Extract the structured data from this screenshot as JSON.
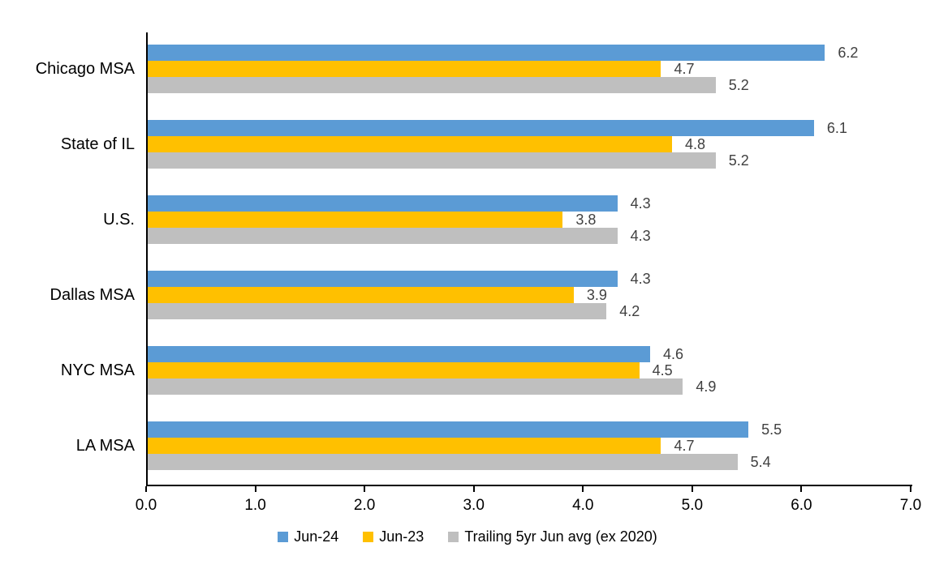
{
  "chart_data": {
    "type": "bar",
    "orientation": "horizontal",
    "title": "",
    "categories": [
      "Chicago MSA",
      "State of IL",
      "U.S.",
      "Dallas MSA",
      "NYC MSA",
      "LA MSA"
    ],
    "series": [
      {
        "name": "Jun-24",
        "color": "#5B9BD5",
        "values": [
          6.2,
          6.1,
          4.3,
          4.3,
          4.6,
          5.5
        ]
      },
      {
        "name": "Jun-23",
        "color": "#FFC000",
        "values": [
          4.7,
          4.8,
          3.8,
          3.9,
          4.5,
          4.7
        ]
      },
      {
        "name": "Trailing 5yr Jun avg (ex 2020)",
        "color": "#BFBFBF",
        "values": [
          5.2,
          5.2,
          4.3,
          4.2,
          4.9,
          5.4
        ]
      }
    ],
    "data_labels": true,
    "label_decimals": 1,
    "xlabel": "",
    "ylabel": "",
    "xlim": [
      0.0,
      7.0
    ],
    "x_ticks": [
      "0.0",
      "1.0",
      "2.0",
      "3.0",
      "4.0",
      "5.0",
      "6.0",
      "7.0"
    ],
    "grid": false,
    "legend_position": "bottom",
    "colors": {
      "axis": "#000000",
      "data_label_text": "#404040",
      "tick_text": "#000000",
      "category_text": "#000000",
      "background": "#FFFFFF"
    }
  }
}
